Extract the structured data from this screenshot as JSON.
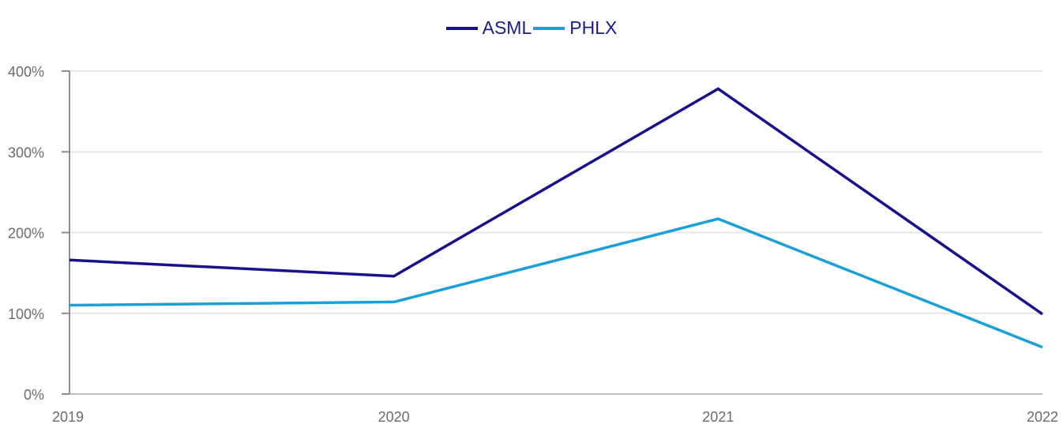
{
  "legend": {
    "items": [
      {
        "label": "ASML",
        "color": "#17128c"
      },
      {
        "label": "PHLX",
        "color": "#1aa0d8"
      }
    ]
  },
  "axes": {
    "y_ticks": [
      "0%",
      "100%",
      "200%",
      "300%",
      "400%"
    ],
    "x_ticks": [
      "2019",
      "2020",
      "2021",
      "2022"
    ]
  },
  "chart_data": {
    "type": "line",
    "title": "",
    "xlabel": "",
    "ylabel": "",
    "categories": [
      "2019",
      "2020",
      "2021",
      "2022"
    ],
    "series": [
      {
        "name": "ASML",
        "color": "#17128c",
        "values": [
          166,
          146,
          378,
          99
        ]
      },
      {
        "name": "PHLX",
        "color": "#1aa0d8",
        "values": [
          110,
          114,
          217,
          58
        ]
      }
    ],
    "ylim": [
      0,
      400
    ],
    "y_unit": "%",
    "grid": true,
    "legend_position": "top"
  }
}
